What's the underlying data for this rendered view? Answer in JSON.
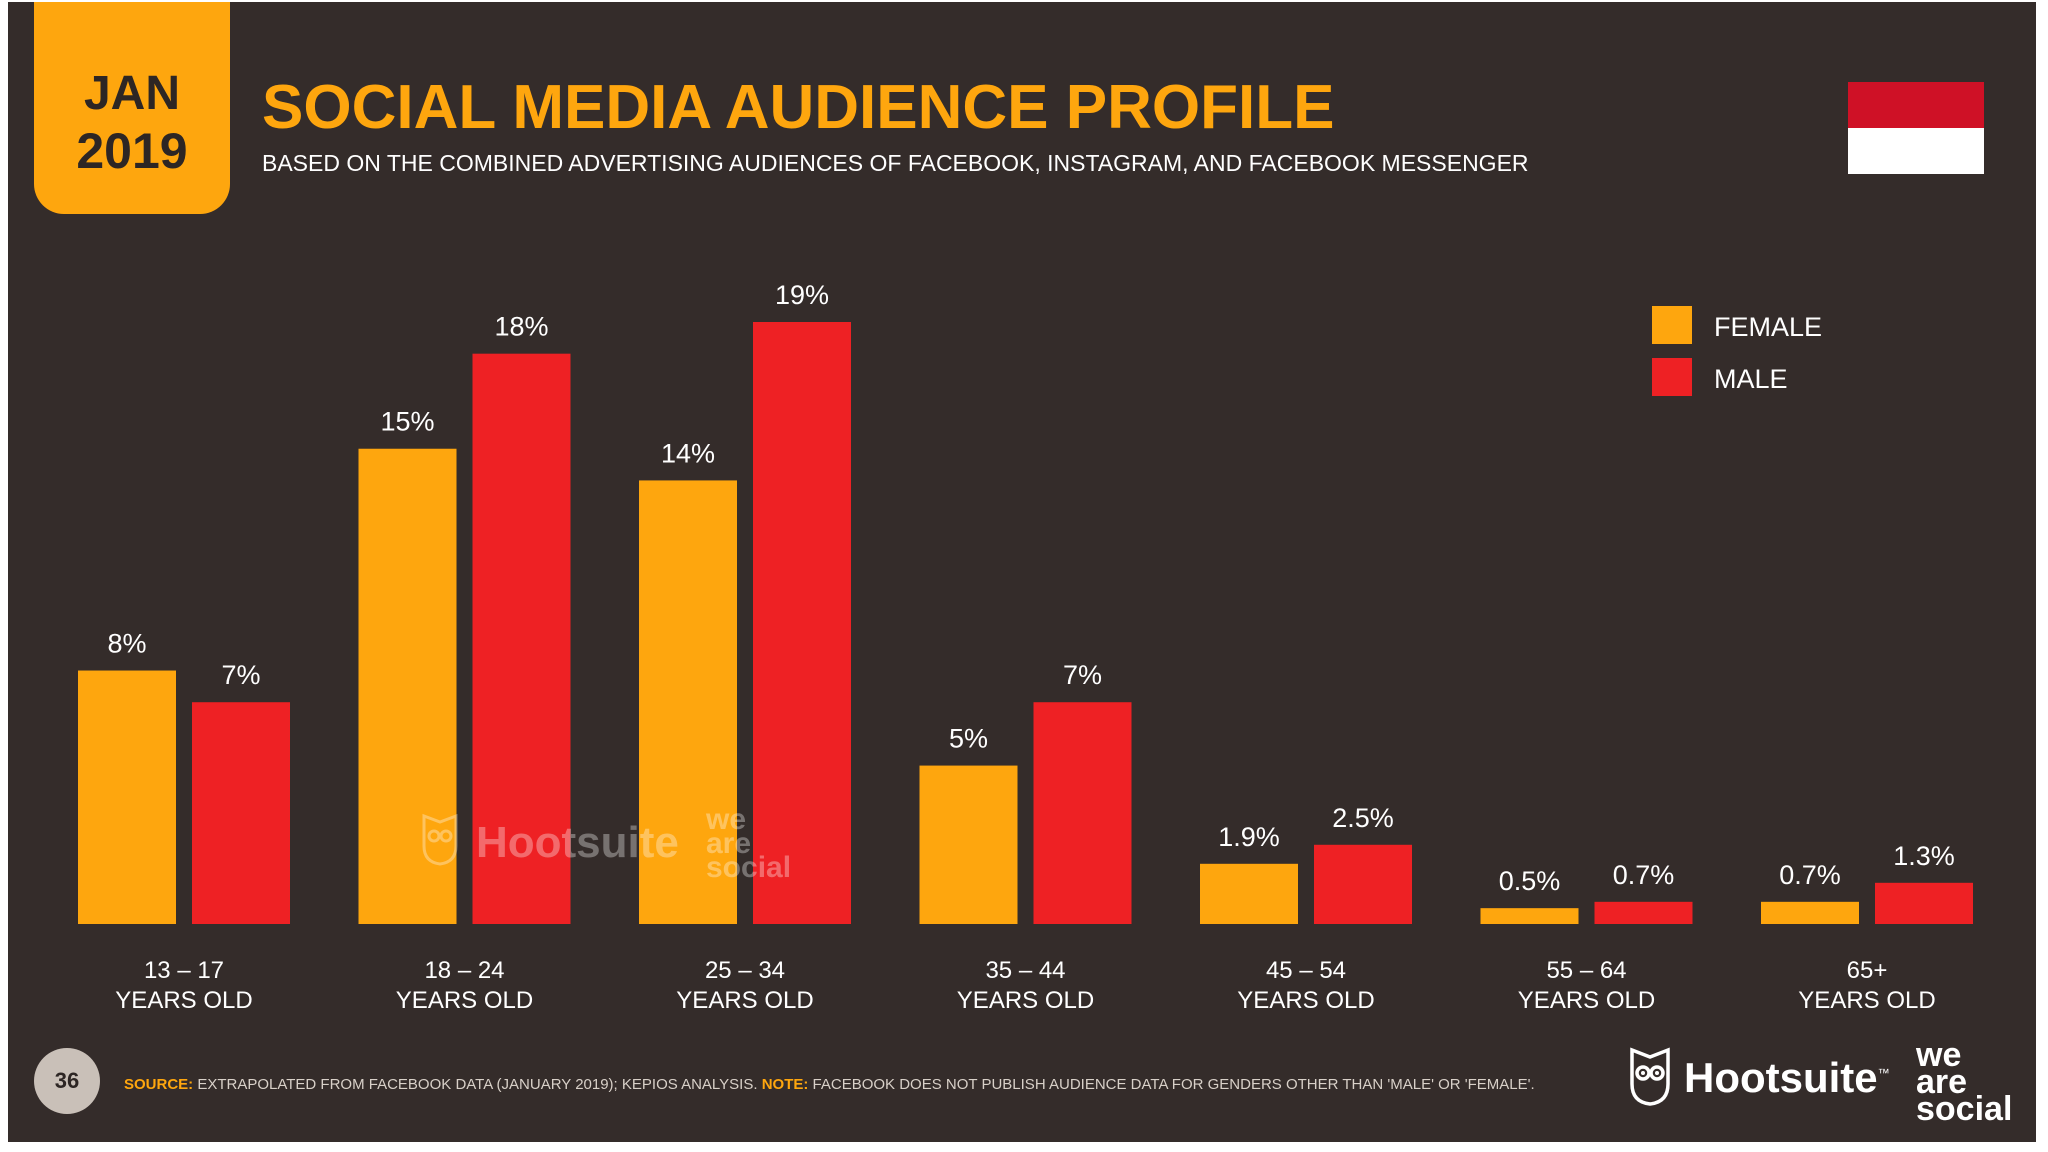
{
  "header": {
    "month": "JAN",
    "year": "2019",
    "title": "SOCIAL MEDIA AUDIENCE PROFILE",
    "subtitle": "BASED ON THE COMBINED ADVERTISING AUDIENCES OF FACEBOOK, INSTAGRAM, AND FACEBOOK MESSENGER"
  },
  "flag": {
    "top_color": "#cf1126",
    "bottom_color": "#ffffff"
  },
  "colors": {
    "female": "#fea60e",
    "male": "#ee2124",
    "background": "#342c2a",
    "accent": "#fea60e"
  },
  "legend": {
    "female_label": "FEMALE",
    "male_label": "MALE"
  },
  "chart_data": {
    "type": "bar",
    "categories": [
      {
        "range": "13 – 17",
        "unit": "YEARS OLD"
      },
      {
        "range": "18 – 24",
        "unit": "YEARS OLD"
      },
      {
        "range": "25 – 34",
        "unit": "YEARS OLD"
      },
      {
        "range": "35 – 44",
        "unit": "YEARS OLD"
      },
      {
        "range": "45 – 54",
        "unit": "YEARS OLD"
      },
      {
        "range": "55 – 64",
        "unit": "YEARS OLD"
      },
      {
        "range": "65+",
        "unit": "YEARS OLD"
      }
    ],
    "series": [
      {
        "name": "FEMALE",
        "values": [
          8,
          15,
          14,
          5,
          1.9,
          0.5,
          0.7
        ],
        "labels": [
          "8%",
          "15%",
          "14%",
          "5%",
          "1.9%",
          "0.5%",
          "0.7%"
        ]
      },
      {
        "name": "MALE",
        "values": [
          7,
          18,
          19,
          7,
          2.5,
          0.7,
          1.3
        ],
        "labels": [
          "7%",
          "18%",
          "19%",
          "7%",
          "2.5%",
          "0.7%",
          "1.3%"
        ]
      }
    ],
    "title": "SOCIAL MEDIA AUDIENCE PROFILE",
    "xlabel": "",
    "ylabel": "",
    "ylim": [
      0,
      19
    ]
  },
  "watermark": {
    "brand": "Hootsuite",
    "we_are_social": [
      "we",
      "are",
      "social"
    ]
  },
  "footer": {
    "page_number": "36",
    "source_key": "SOURCE:",
    "source_text": "EXTRAPOLATED FROM FACEBOOK DATA (JANUARY 2019); KEPIOS ANALYSIS.",
    "note_key": "NOTE:",
    "note_text": "FACEBOOK DOES NOT PUBLISH AUDIENCE DATA FOR GENDERS OTHER THAN 'MALE' OR 'FEMALE'."
  },
  "logos": {
    "brand": "Hootsuite",
    "trademark": "™",
    "we_are_social": [
      "we",
      "are",
      "social"
    ]
  }
}
